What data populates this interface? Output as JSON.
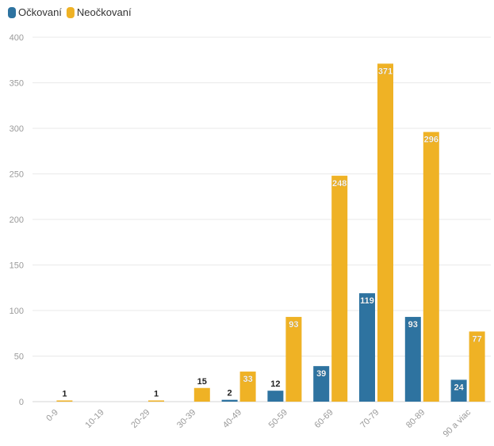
{
  "chart_data": {
    "type": "bar",
    "title": "",
    "xlabel": "",
    "ylabel": "",
    "categories": [
      "0-9",
      "10-19",
      "20-29",
      "30-39",
      "40-49",
      "50-59",
      "60-69",
      "70-79",
      "80-89",
      "90 a viac"
    ],
    "series": [
      {
        "name": "Očkovaní",
        "color": "#2e73a0",
        "values": [
          null,
          null,
          null,
          null,
          2,
          12,
          39,
          119,
          93,
          24
        ]
      },
      {
        "name": "Neočkovaní",
        "color": "#efb225",
        "values": [
          1,
          null,
          1,
          15,
          33,
          93,
          248,
          371,
          296,
          77
        ]
      }
    ],
    "ylim": [
      0,
      400
    ],
    "yticks": [
      0,
      50,
      100,
      150,
      200,
      250,
      300,
      350,
      400
    ],
    "grid": true,
    "legend_position": "top-left"
  }
}
